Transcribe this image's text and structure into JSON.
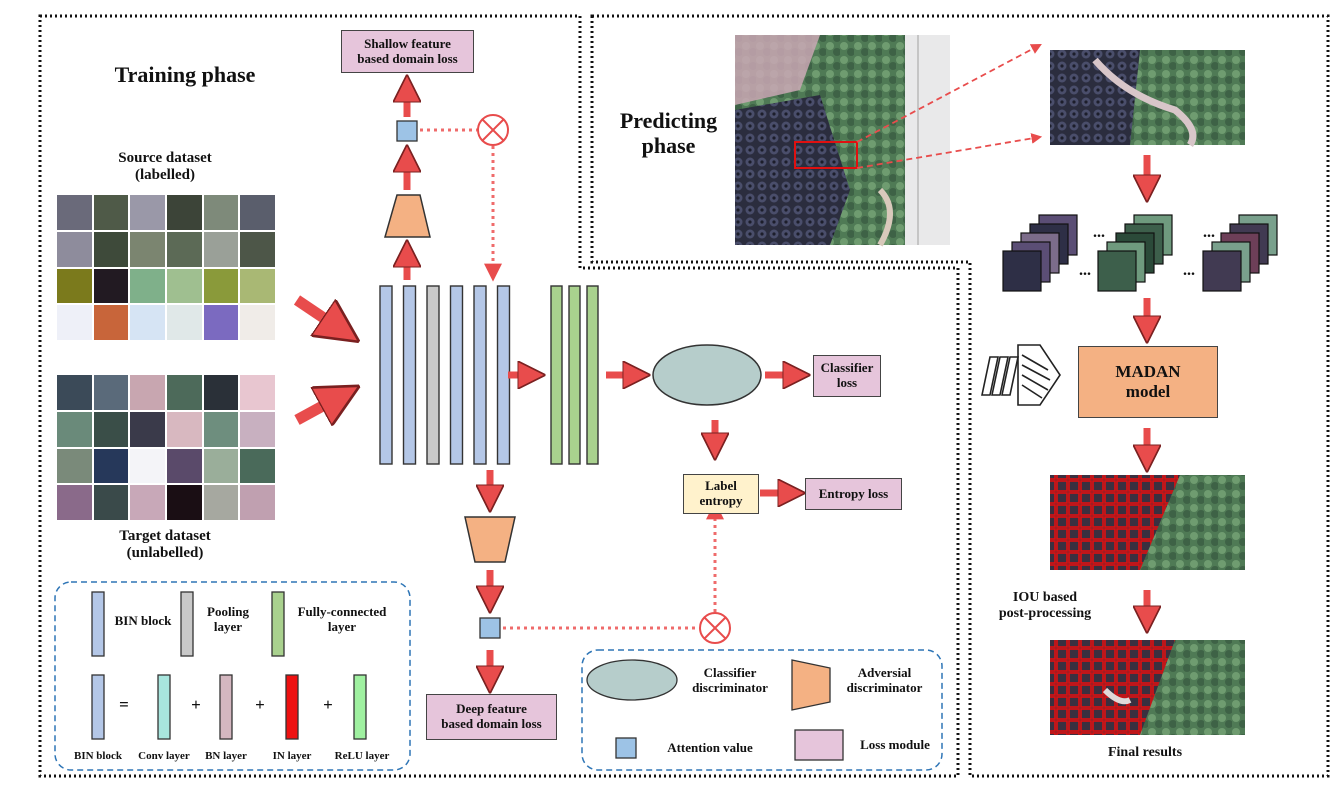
{
  "training": {
    "title": "Training phase",
    "source_label_1": "Source dataset",
    "source_label_2": "(labelled)",
    "target_label_1": "Target dataset",
    "target_label_2": "(unlabelled)",
    "shallow_loss_1": "Shallow feature",
    "shallow_loss_2": "based domain loss",
    "deep_loss_1": "Deep feature",
    "deep_loss_2": "based domain loss",
    "classifier_loss_1": "Classifier",
    "classifier_loss_2": "loss",
    "label_entropy_1": "Label",
    "label_entropy_2": "entropy",
    "entropy_loss": "Entropy loss"
  },
  "legend_blocks": {
    "bin_block": "BIN block",
    "pooling_1": "Pooling",
    "pooling_2": "layer",
    "fc_1": "Fully-connected",
    "fc_2": "layer",
    "equals": "=",
    "plus": "+",
    "bin_block_bottom": "BIN block",
    "conv": "Conv layer",
    "bn": "BN layer",
    "in": "IN layer",
    "relu": "ReLU layer"
  },
  "legend_modules": {
    "classifier_disc_1": "Classifier",
    "classifier_disc_2": "discriminator",
    "adversial_disc_1": "Adversial",
    "adversial_disc_2": "discriminator",
    "attention": "Attention value",
    "loss_module": "Loss module"
  },
  "predicting": {
    "title_1": "Predicting",
    "title_2": "phase",
    "model_1": "MADAN",
    "model_2": "model",
    "iou_1": "IOU based",
    "iou_2": "post-processing",
    "final": "Final results",
    "dots": "..."
  },
  "colors": {
    "bin_blue": "#b4c7e7",
    "pool_gray": "#c9c9c9",
    "fc_green": "#a9d18e",
    "loss_pink": "#e6c5db",
    "adv_orange": "#f4b183",
    "cls_teal": "#b6cdcb",
    "attention_blue": "#9dc3e6",
    "entropy_yellow": "#fff2cc",
    "arrow_red": "#e84c4c",
    "conv": "#a8e6de",
    "bn": "#d4b7c0",
    "in": "#ee1111",
    "relu": "#9ff0a0",
    "legend_border": "#2e75b6"
  }
}
